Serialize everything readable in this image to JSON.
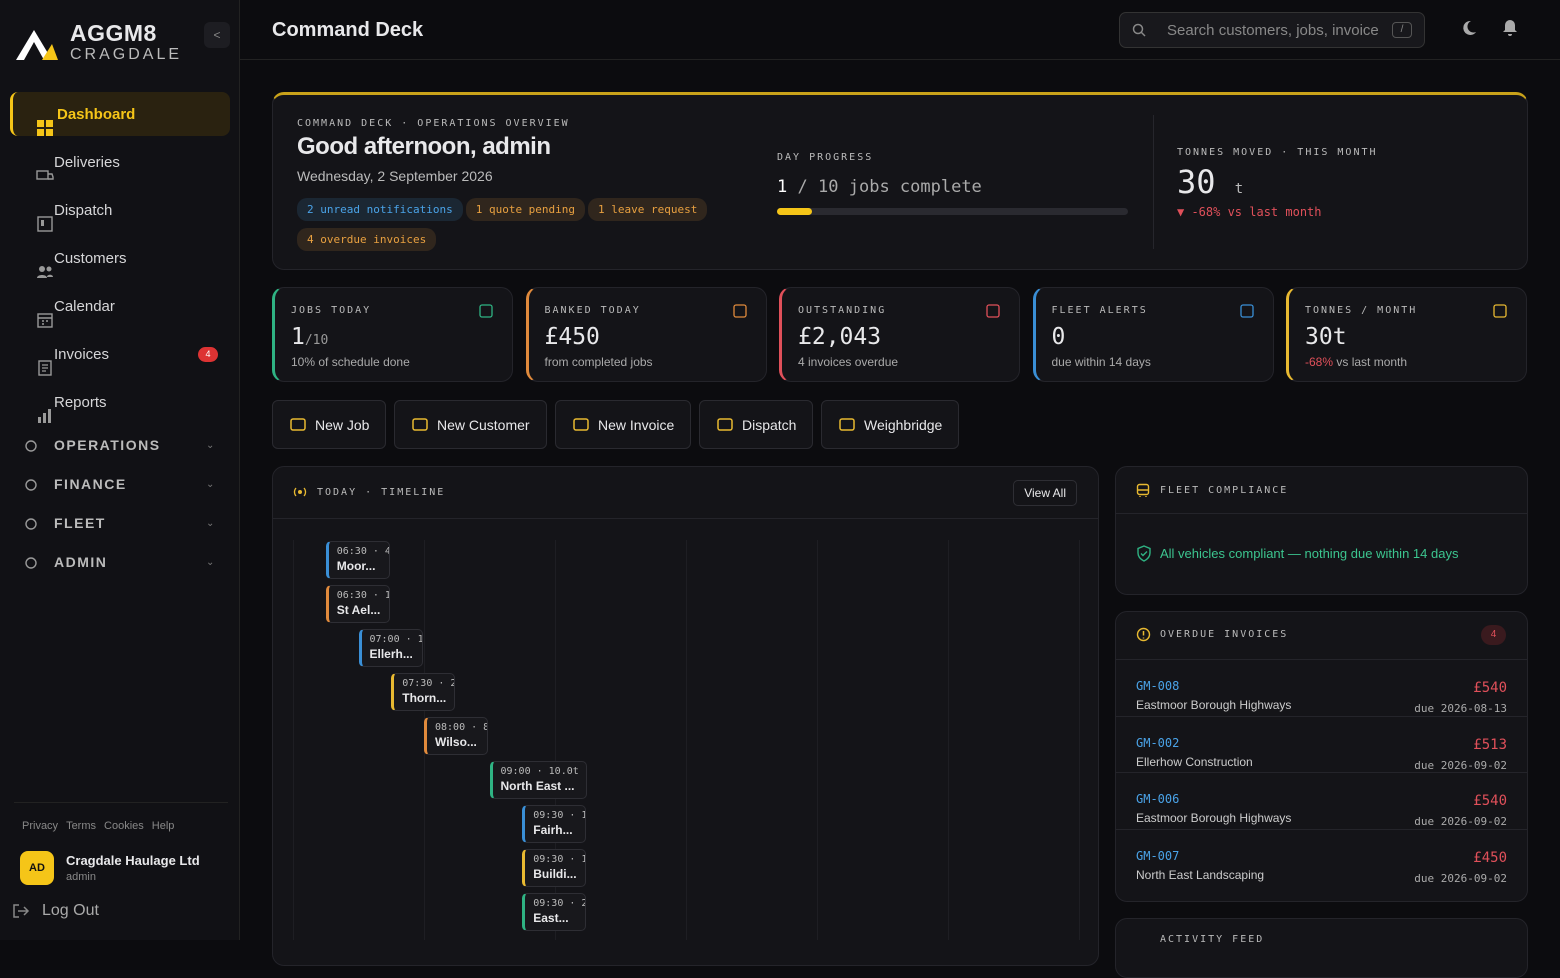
{
  "sidebar": {
    "brand": "AGGM8",
    "brand_sub": "CRAGDALE",
    "nav": [
      {
        "label": "Dashboard"
      },
      {
        "label": "Deliveries"
      },
      {
        "label": "Dispatch"
      },
      {
        "label": "Customers"
      },
      {
        "label": "Calendar"
      },
      {
        "label": "Invoices",
        "badge": 4
      },
      {
        "label": "Reports"
      }
    ],
    "groups": [
      "OPERATIONS",
      "FINANCE",
      "FLEET",
      "ADMIN"
    ],
    "footer_links": [
      "Privacy",
      "Terms",
      "Cookies",
      "Help"
    ],
    "user": {
      "initials": "AD",
      "name": "Cragdale Haulage Ltd",
      "role": "admin"
    },
    "logout": "Log Out"
  },
  "header": {
    "title": "Command Deck",
    "search_placeholder": "Search customers, jobs, invoices",
    "search_shortcut": "/"
  },
  "hero": {
    "eyebrow": "COMMAND DECK · OPERATIONS OVERVIEW",
    "greeting": "Good afternoon, admin",
    "date": "Wednesday, 2 September 2026",
    "pills": [
      {
        "text": "2 unread notifications",
        "color": "#4aa3e8"
      },
      {
        "text": "1 quote pending",
        "color": "#e8a040"
      },
      {
        "text": "1 leave request",
        "color": "#e8a040"
      },
      {
        "text": "4 overdue invoices",
        "color": "#e8a040"
      }
    ],
    "progress": {
      "label": "DAY PROGRESS",
      "done": 1,
      "separator": "/",
      "total": 10,
      "unit": "jobs complete"
    },
    "tonnes": {
      "label": "TONNES MOVED · THIS MONTH",
      "value": 30,
      "unit": "t",
      "change": "▼ -68% vs last month"
    }
  },
  "kpis": [
    {
      "label": "JOBS TODAY",
      "value": "1",
      "value_suffix": "/10",
      "note": "10% of schedule done",
      "color": "#2fb383"
    },
    {
      "label": "BANKED TODAY",
      "value": "£450",
      "note": "from completed jobs",
      "color": "#e08a3c"
    },
    {
      "label": "OUTSTANDING",
      "value": "£2,043",
      "note": "4 invoices overdue",
      "color": "#e0505a"
    },
    {
      "label": "FLEET ALERTS",
      "value": "0",
      "note": "due within 14 days",
      "color": "#3a8fd6"
    },
    {
      "label": "TONNES / MONTH",
      "value": "30t",
      "note_highlight": "-68%",
      "note": "vs last month",
      "color": "#e8b931"
    }
  ],
  "actions": [
    "New Job",
    "New Customer",
    "New Invoice",
    "Dispatch",
    "Weighbridge"
  ],
  "timeline": {
    "title": "TODAY · TIMELINE",
    "view_all": "View All",
    "events": [
      {
        "time": "06:30 · 4",
        "text": "Moor...",
        "color": "#3a8fd6"
      },
      {
        "time": "06:30 · 1",
        "text": "St Ael...",
        "color": "#e08a3c"
      },
      {
        "time": "07:00 · 1",
        "text": "Ellerh...",
        "color": "#3a8fd6"
      },
      {
        "time": "07:30 · 2",
        "text": "Thorn...",
        "color": "#e8b931"
      },
      {
        "time": "08:00 · 8",
        "text": "Wilso...",
        "color": "#e08a3c"
      },
      {
        "time": "09:00 · 10.0t",
        "text": "North East ...",
        "color": "#2fb383"
      },
      {
        "time": "09:30 · 1",
        "text": "Fairh...",
        "color": "#3a8fd6"
      },
      {
        "time": "09:30 · 1",
        "text": "Buildi...",
        "color": "#e8b931"
      },
      {
        "time": "09:30 · 2",
        "text": "East...",
        "color": "#2fb383"
      }
    ]
  },
  "fleet": {
    "title": "FLEET COMPLIANCE",
    "message": "All vehicles compliant — nothing due within 14 days"
  },
  "overdue": {
    "title": "OVERDUE INVOICES",
    "count": 4,
    "rows": [
      {
        "id": "GM-008",
        "customer": "Eastmoor Borough Highways",
        "amount": "£540",
        "due": "due 2026-08-13"
      },
      {
        "id": "GM-002",
        "customer": "Ellerhow Construction",
        "amount": "£513",
        "due": "due 2026-09-02"
      },
      {
        "id": "GM-006",
        "customer": "Eastmoor Borough Highways",
        "amount": "£540",
        "due": "due 2026-09-02"
      },
      {
        "id": "GM-007",
        "customer": "North East Landscaping",
        "amount": "£450",
        "due": "due 2026-09-02"
      }
    ]
  },
  "activity": {
    "title": "ACTIVITY FEED"
  }
}
